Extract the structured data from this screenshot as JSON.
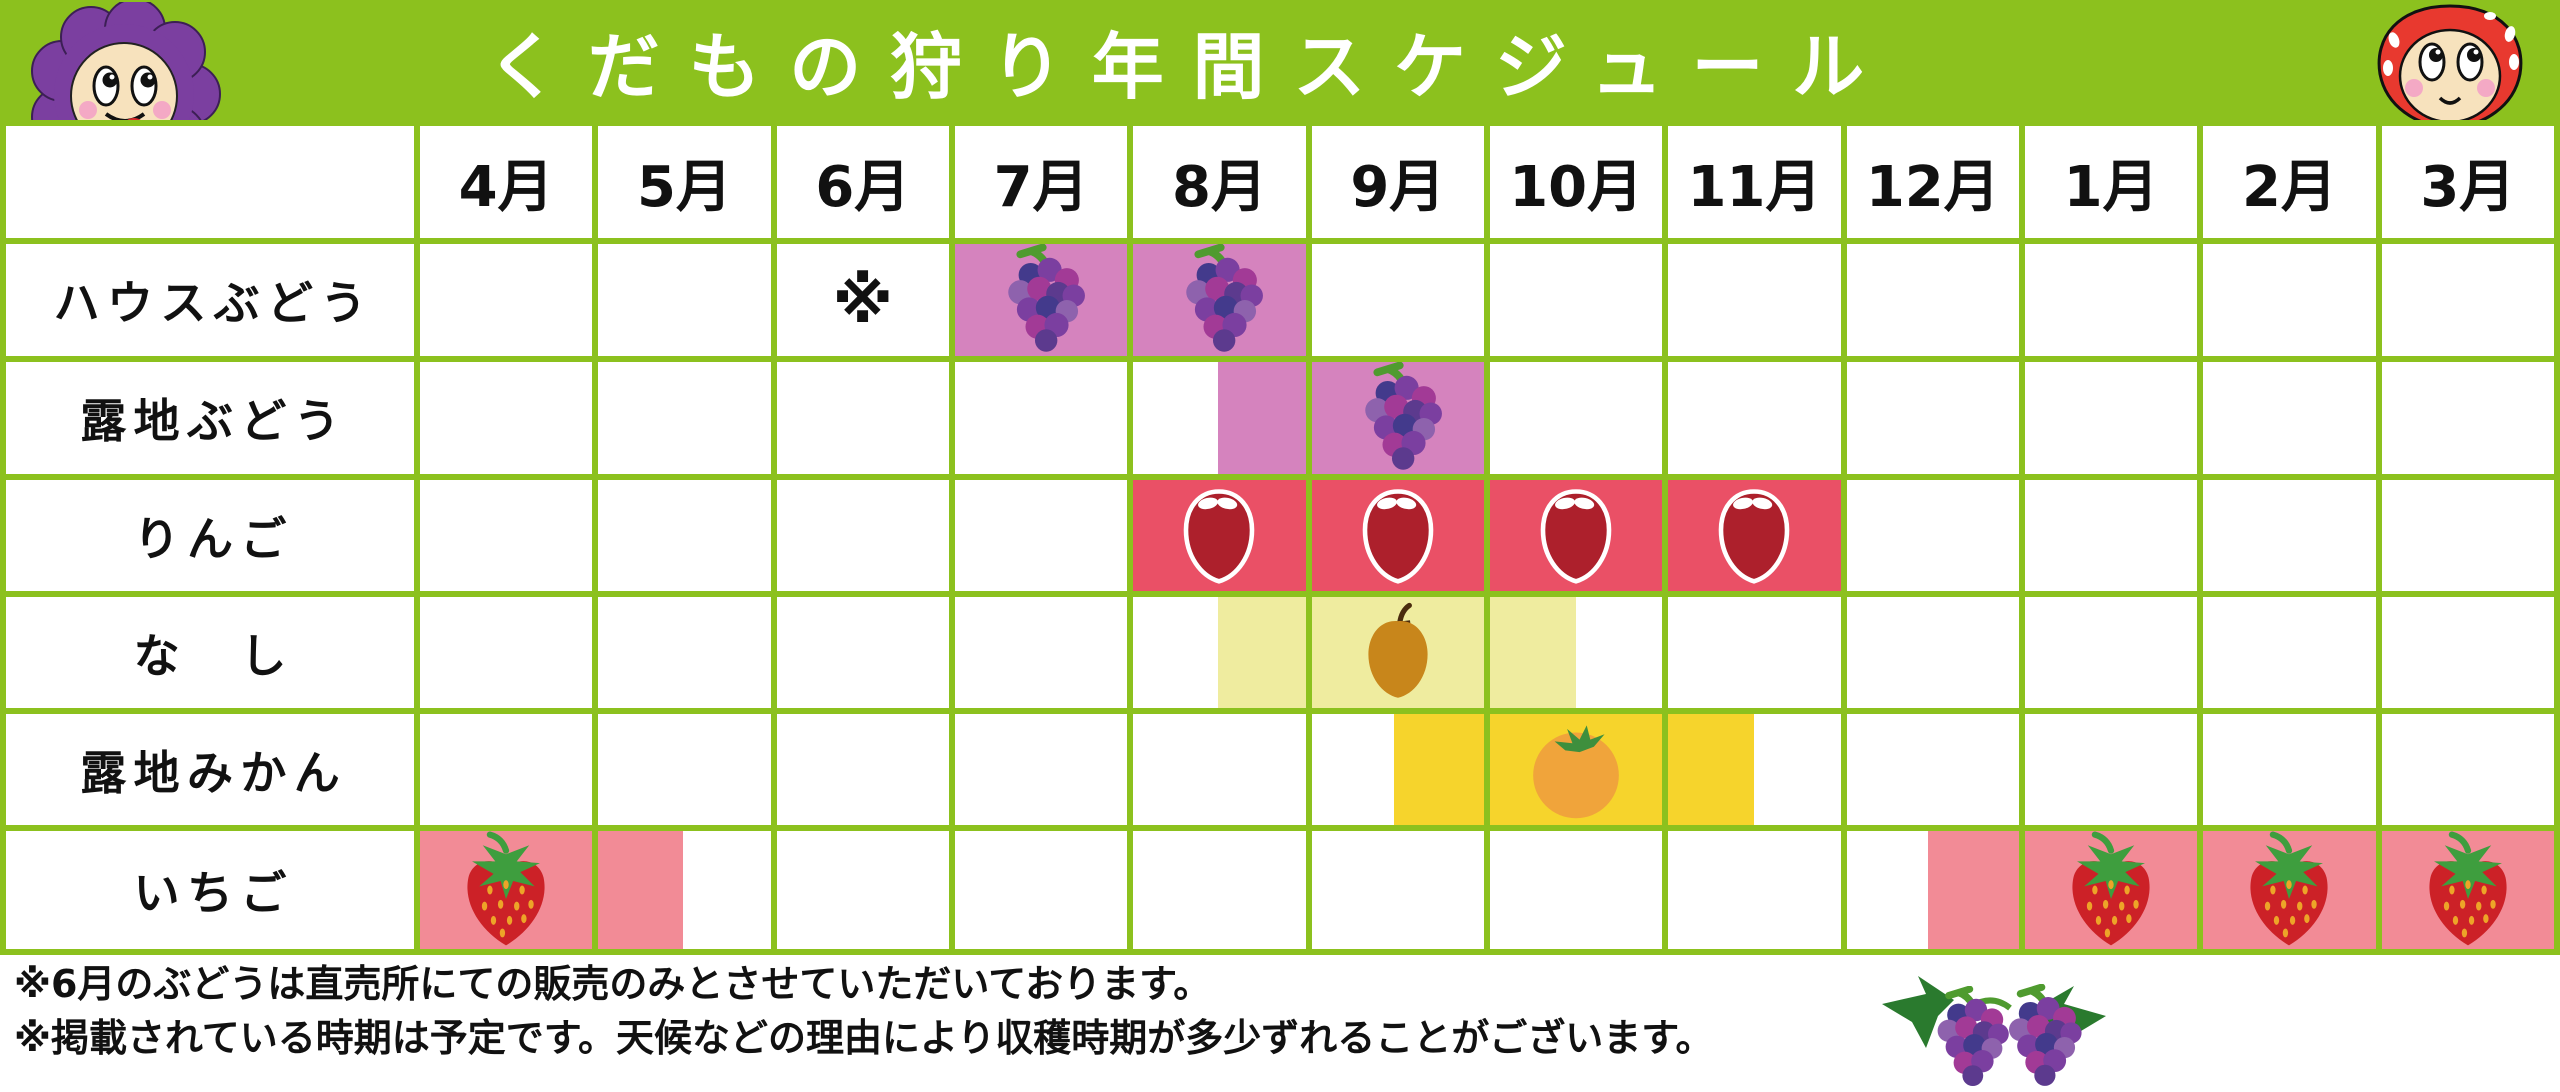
{
  "title": "くだもの狩り年間スケジュール",
  "months": [
    "4月",
    "5月",
    "6月",
    "7月",
    "8月",
    "9月",
    "10月",
    "11月",
    "12月",
    "1月",
    "2月",
    "3月"
  ],
  "rows": [
    {
      "label": "ハウスぶどう",
      "color": "#d583be",
      "cells": [
        {
          "m": 2,
          "note": "※"
        },
        {
          "m": 3,
          "from": 0,
          "to": 1,
          "icon": "grape"
        },
        {
          "m": 4,
          "from": 0,
          "to": 1,
          "icon": "grape"
        }
      ]
    },
    {
      "label": "露地ぶどう",
      "color": "#d583be",
      "cells": [
        {
          "m": 4,
          "from": 0.49,
          "to": 1
        },
        {
          "m": 5,
          "from": 0,
          "to": 1,
          "icon": "grape"
        }
      ]
    },
    {
      "label": "りんご",
      "color": "#ea5066",
      "cells": [
        {
          "m": 4,
          "from": 0,
          "to": 1,
          "icon": "apple"
        },
        {
          "m": 5,
          "from": 0,
          "to": 1,
          "icon": "apple"
        },
        {
          "m": 6,
          "from": 0,
          "to": 1,
          "icon": "apple"
        },
        {
          "m": 7,
          "from": 0,
          "to": 1,
          "icon": "apple"
        }
      ]
    },
    {
      "label": "な　し",
      "color": "#efec9f",
      "cells": [
        {
          "m": 4,
          "from": 0.49,
          "to": 1
        },
        {
          "m": 5,
          "from": 0,
          "to": 1,
          "icon": "pear"
        },
        {
          "m": 6,
          "from": 0,
          "to": 0.5
        }
      ]
    },
    {
      "label": "露地みかん",
      "color": "#f6d42c",
      "cells": [
        {
          "m": 5,
          "from": 0.48,
          "to": 1
        },
        {
          "m": 6,
          "from": 0,
          "to": 1,
          "icon": "mandarin"
        },
        {
          "m": 7,
          "from": 0,
          "to": 0.5
        }
      ]
    },
    {
      "label": "いちご",
      "color": "#f28b96",
      "cells": [
        {
          "m": 0,
          "from": 0,
          "to": 1,
          "icon": "strawberry"
        },
        {
          "m": 1,
          "from": 0,
          "to": 0.49
        },
        {
          "m": 8,
          "from": 0.47,
          "to": 1
        },
        {
          "m": 9,
          "from": 0,
          "to": 1,
          "icon": "strawberry"
        },
        {
          "m": 10,
          "from": 0,
          "to": 1,
          "icon": "strawberry"
        },
        {
          "m": 11,
          "from": 0,
          "to": 1,
          "icon": "strawberry"
        }
      ]
    }
  ],
  "notes": [
    "※6月のぶどうは直売所にての販売のみとさせていただいております。",
    "※掲載されている時期は予定です。天候などの理由により収穫時期が多少ずれることがございます。"
  ],
  "icons": {
    "grape": "grape-icon",
    "apple": "apple-icon",
    "pear": "pear-icon",
    "mandarin": "mandarin-icon",
    "strawberry": "strawberry-icon"
  },
  "colors": {
    "header_green": "#8cc11e",
    "grid_green": "#8cc11e",
    "title_text": "#ffffff",
    "grape_fill": "#d583be",
    "apple_fill": "#ea5066",
    "pear_fill": "#efec9f",
    "mandarin_fill": "#f6d42c",
    "strawberry_fill": "#f28b96",
    "body_text": "#111111"
  },
  "chart_data": {
    "type": "table",
    "title": "くだもの狩り年間スケジュール",
    "columns": [
      "4月",
      "5月",
      "6月",
      "7月",
      "8月",
      "9月",
      "10月",
      "11月",
      "12月",
      "1月",
      "2月",
      "3月"
    ],
    "rows": [
      {
        "name": "ハウスぶどう",
        "season": "7月〜8月",
        "note": "6月は※（直売所での販売のみ）"
      },
      {
        "name": "露地ぶどう",
        "season": "8月中旬〜9月"
      },
      {
        "name": "りんご",
        "season": "8月〜11月"
      },
      {
        "name": "なし",
        "season": "8月中旬〜10月中旬"
      },
      {
        "name": "露地みかん",
        "season": "9月中旬〜11月中旬"
      },
      {
        "name": "いちご",
        "season": "4月〜5月中旬 と 12月中旬〜3月"
      }
    ]
  }
}
